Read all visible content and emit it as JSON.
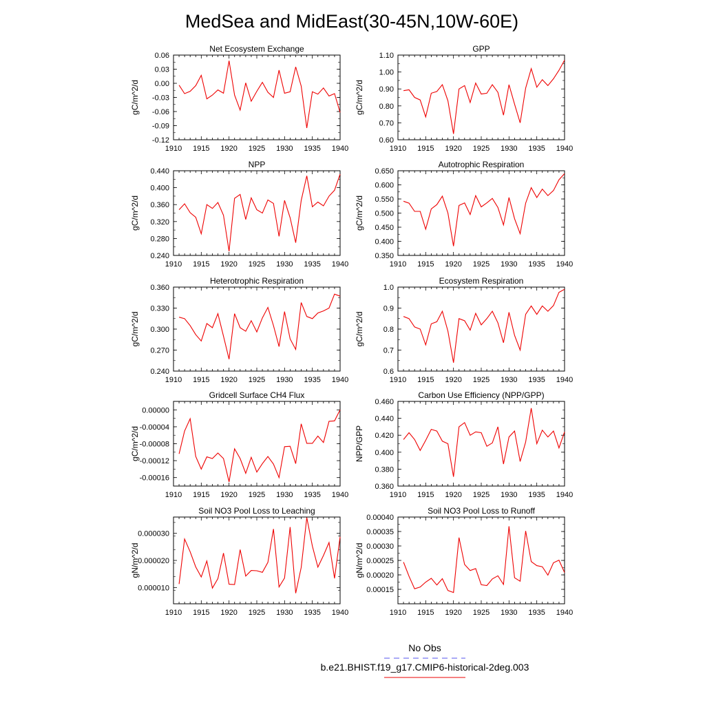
{
  "figure": {
    "title": "MedSea and MidEast(30-45N,10W-60E)",
    "legend": [
      {
        "label": "No Obs",
        "color": "#5555ee",
        "dash": true
      },
      {
        "label": "b.e21.BHIST.f19_g17.CMIP6-historical-2deg.003",
        "color": "#ee0000",
        "dash": false
      }
    ]
  },
  "chart_data": [
    {
      "type": "line",
      "title": "Net Ecosystem Exchange",
      "ylabel": "gC/m^2/d",
      "xlim": [
        1910,
        1940
      ],
      "ylim": [
        -0.12,
        0.06
      ],
      "xticks": [
        "1910",
        "1915",
        "1920",
        "1925",
        "1930",
        "1935",
        "1940"
      ],
      "yticks": [
        "-0.12",
        "-0.09",
        "-0.06",
        "-0.03",
        "0.00",
        "0.03",
        "0.06"
      ],
      "color": "#ee0000",
      "x": [
        1911,
        1912,
        1913,
        1914,
        1915,
        1916,
        1917,
        1918,
        1919,
        1920,
        1921,
        1922,
        1923,
        1924,
        1925,
        1926,
        1927,
        1928,
        1929,
        1930,
        1931,
        1932,
        1933,
        1934,
        1935,
        1936,
        1937,
        1938,
        1939,
        1940
      ],
      "values": [
        -0.004,
        -0.022,
        -0.017,
        -0.005,
        0.017,
        -0.033,
        -0.025,
        -0.014,
        -0.021,
        0.048,
        -0.025,
        -0.057,
        0.001,
        -0.038,
        -0.017,
        0.002,
        -0.019,
        -0.03,
        0.028,
        -0.021,
        -0.018,
        0.035,
        -0.006,
        -0.095,
        -0.018,
        -0.023,
        -0.01,
        -0.027,
        -0.022,
        -0.062
      ]
    },
    {
      "type": "line",
      "title": "GPP",
      "ylabel": "gC/m^2/d",
      "xlim": [
        1910,
        1940
      ],
      "ylim": [
        0.6,
        1.1
      ],
      "xticks": [
        "1910",
        "1915",
        "1920",
        "1925",
        "1930",
        "1935",
        "1940"
      ],
      "yticks": [
        "0.60",
        "0.70",
        "0.80",
        "0.90",
        "1.00",
        "1.10"
      ],
      "color": "#ee0000",
      "x": [
        1911,
        1912,
        1913,
        1914,
        1915,
        1916,
        1917,
        1918,
        1919,
        1920,
        1921,
        1922,
        1923,
        1924,
        1925,
        1926,
        1927,
        1928,
        1929,
        1930,
        1931,
        1932,
        1933,
        1934,
        1935,
        1936,
        1937,
        1938,
        1939,
        1940
      ],
      "values": [
        0.89,
        0.895,
        0.85,
        0.835,
        0.735,
        0.875,
        0.885,
        0.925,
        0.83,
        0.635,
        0.9,
        0.92,
        0.82,
        0.935,
        0.87,
        0.875,
        0.925,
        0.88,
        0.745,
        0.925,
        0.81,
        0.7,
        0.905,
        1.02,
        0.91,
        0.955,
        0.92,
        0.96,
        1.01,
        1.07
      ]
    },
    {
      "type": "line",
      "title": "NPP",
      "ylabel": "gC/m^2/d",
      "xlim": [
        1910,
        1940
      ],
      "ylim": [
        0.24,
        0.44
      ],
      "xticks": [
        "1910",
        "1915",
        "1920",
        "1925",
        "1930",
        "1935",
        "1940"
      ],
      "yticks": [
        "0.240",
        "0.280",
        "0.320",
        "0.360",
        "0.400",
        "0.440"
      ],
      "color": "#ee0000",
      "x": [
        1911,
        1912,
        1913,
        1914,
        1915,
        1916,
        1917,
        1918,
        1919,
        1920,
        1921,
        1922,
        1923,
        1924,
        1925,
        1926,
        1927,
        1928,
        1929,
        1930,
        1931,
        1932,
        1933,
        1934,
        1935,
        1936,
        1937,
        1938,
        1939,
        1940
      ],
      "values": [
        0.348,
        0.362,
        0.341,
        0.33,
        0.291,
        0.36,
        0.351,
        0.365,
        0.335,
        0.25,
        0.375,
        0.384,
        0.325,
        0.376,
        0.348,
        0.34,
        0.371,
        0.363,
        0.285,
        0.37,
        0.329,
        0.27,
        0.37,
        0.428,
        0.355,
        0.366,
        0.357,
        0.38,
        0.394,
        0.432
      ]
    },
    {
      "type": "line",
      "title": "Autotrophic Respiration",
      "ylabel": "gC/m^2/d",
      "xlim": [
        1910,
        1940
      ],
      "ylim": [
        0.35,
        0.65
      ],
      "xticks": [
        "1910",
        "1915",
        "1920",
        "1925",
        "1930",
        "1935",
        "1940"
      ],
      "yticks": [
        "0.350",
        "0.400",
        "0.450",
        "0.500",
        "0.550",
        "0.600",
        "0.650"
      ],
      "color": "#ee0000",
      "x": [
        1911,
        1912,
        1913,
        1914,
        1915,
        1916,
        1917,
        1918,
        1919,
        1920,
        1921,
        1922,
        1923,
        1924,
        1925,
        1926,
        1927,
        1928,
        1929,
        1930,
        1931,
        1932,
        1933,
        1934,
        1935,
        1936,
        1937,
        1938,
        1939,
        1940
      ],
      "values": [
        0.542,
        0.535,
        0.506,
        0.506,
        0.443,
        0.515,
        0.53,
        0.56,
        0.5,
        0.383,
        0.527,
        0.536,
        0.495,
        0.562,
        0.522,
        0.536,
        0.552,
        0.52,
        0.458,
        0.555,
        0.48,
        0.427,
        0.535,
        0.59,
        0.555,
        0.585,
        0.562,
        0.58,
        0.618,
        0.64
      ]
    },
    {
      "type": "line",
      "title": "Heterotrophic Respiration",
      "ylabel": "gC/m^2/d",
      "xlim": [
        1910,
        1940
      ],
      "ylim": [
        0.24,
        0.36
      ],
      "xticks": [
        "1910",
        "1915",
        "1920",
        "1925",
        "1930",
        "1935",
        "1940"
      ],
      "yticks": [
        "0.240",
        "0.270",
        "0.300",
        "0.330",
        "0.360"
      ],
      "color": "#ee0000",
      "x": [
        1911,
        1912,
        1913,
        1914,
        1915,
        1916,
        1917,
        1918,
        1919,
        1920,
        1921,
        1922,
        1923,
        1924,
        1925,
        1926,
        1927,
        1928,
        1929,
        1930,
        1931,
        1932,
        1933,
        1934,
        1935,
        1936,
        1937,
        1938,
        1939,
        1940
      ],
      "values": [
        0.317,
        0.315,
        0.305,
        0.292,
        0.283,
        0.308,
        0.302,
        0.322,
        0.29,
        0.257,
        0.322,
        0.302,
        0.297,
        0.312,
        0.296,
        0.316,
        0.331,
        0.305,
        0.275,
        0.325,
        0.286,
        0.271,
        0.338,
        0.318,
        0.315,
        0.323,
        0.326,
        0.33,
        0.35,
        0.347
      ]
    },
    {
      "type": "line",
      "title": "Ecosystem Respiration",
      "ylabel": "gC/m^2/d",
      "xlim": [
        1910,
        1940
      ],
      "ylim": [
        0.6,
        1.0
      ],
      "xticks": [
        "1910",
        "1915",
        "1920",
        "1925",
        "1930",
        "1935",
        "1940"
      ],
      "yticks": [
        "0.6",
        "0.7",
        "0.8",
        "0.9",
        "1.0"
      ],
      "color": "#ee0000",
      "x": [
        1911,
        1912,
        1913,
        1914,
        1915,
        1916,
        1917,
        1918,
        1919,
        1920,
        1921,
        1922,
        1923,
        1924,
        1925,
        1926,
        1927,
        1928,
        1929,
        1930,
        1931,
        1932,
        1933,
        1934,
        1935,
        1936,
        1937,
        1938,
        1939,
        1940
      ],
      "values": [
        0.86,
        0.85,
        0.81,
        0.8,
        0.725,
        0.825,
        0.835,
        0.885,
        0.79,
        0.64,
        0.85,
        0.84,
        0.795,
        0.875,
        0.82,
        0.85,
        0.885,
        0.83,
        0.735,
        0.88,
        0.77,
        0.7,
        0.87,
        0.91,
        0.87,
        0.91,
        0.885,
        0.912,
        0.975,
        0.99
      ]
    },
    {
      "type": "line",
      "title": "Gridcell Surface CH4 Flux",
      "ylabel": "gC/m^2/d",
      "xlim": [
        1910,
        1940
      ],
      "ylim": [
        -0.00018,
        2e-05
      ],
      "xticks": [
        "1910",
        "1915",
        "1920",
        "1925",
        "1930",
        "1935",
        "1940"
      ],
      "yticks": [
        "-0.00016",
        "-0.00012",
        "-0.00008",
        "-0.00004",
        "0.00000"
      ],
      "color": "#ee0000",
      "x": [
        1911,
        1912,
        1913,
        1914,
        1915,
        1916,
        1917,
        1918,
        1919,
        1920,
        1921,
        1922,
        1923,
        1924,
        1925,
        1926,
        1927,
        1928,
        1929,
        1930,
        1931,
        1932,
        1933,
        1934,
        1935,
        1936,
        1937,
        1938,
        1939,
        1940
      ],
      "values": [
        -0.000104,
        -5e-05,
        -2.1e-05,
        -0.00011,
        -0.00014,
        -0.000111,
        -0.000115,
        -0.000102,
        -0.000115,
        -0.00017,
        -9.2e-05,
        -0.000115,
        -0.00015,
        -0.000112,
        -0.000147,
        -0.000127,
        -0.00011,
        -0.000128,
        -0.00016,
        -8.7e-05,
        -8.6e-05,
        -0.000127,
        -3.3e-05,
        -7.9e-05,
        -7.9e-05,
        -6.2e-05,
        -7.7e-05,
        -2.7e-05,
        -2.6e-05,
        0.0
      ]
    },
    {
      "type": "line",
      "title": "Carbon Use Efficiency (NPP/GPP)",
      "ylabel": "NPP/GPP",
      "xlim": [
        1910,
        1940
      ],
      "ylim": [
        0.36,
        0.46
      ],
      "xticks": [
        "1910",
        "1915",
        "1920",
        "1925",
        "1930",
        "1935",
        "1940"
      ],
      "yticks": [
        "0.360",
        "0.380",
        "0.400",
        "0.420",
        "0.440",
        "0.460"
      ],
      "color": "#ee0000",
      "x": [
        1911,
        1912,
        1913,
        1914,
        1915,
        1916,
        1917,
        1918,
        1919,
        1920,
        1921,
        1922,
        1923,
        1924,
        1925,
        1926,
        1927,
        1928,
        1929,
        1930,
        1931,
        1932,
        1933,
        1934,
        1935,
        1936,
        1937,
        1938,
        1939,
        1940
      ],
      "values": [
        0.415,
        0.423,
        0.415,
        0.402,
        0.414,
        0.427,
        0.425,
        0.413,
        0.41,
        0.371,
        0.43,
        0.435,
        0.42,
        0.424,
        0.423,
        0.407,
        0.411,
        0.43,
        0.386,
        0.418,
        0.425,
        0.389,
        0.412,
        0.452,
        0.41,
        0.426,
        0.418,
        0.425,
        0.405,
        0.424
      ]
    },
    {
      "type": "line",
      "title": "Soil NO3 Pool Loss to Leaching",
      "ylabel": "gN/m^2/d",
      "xlim": [
        1910,
        1940
      ],
      "ylim": [
        4e-06,
        3.6e-05
      ],
      "xticks": [
        "1910",
        "1915",
        "1920",
        "1925",
        "1930",
        "1935",
        "1940"
      ],
      "yticks": [
        "0.000010",
        "0.000020",
        "0.000030"
      ],
      "color": "#ee0000",
      "x": [
        1911,
        1912,
        1913,
        1914,
        1915,
        1916,
        1917,
        1918,
        1919,
        1920,
        1921,
        1922,
        1923,
        1924,
        1925,
        1926,
        1927,
        1928,
        1929,
        1930,
        1931,
        1932,
        1933,
        1934,
        1935,
        1936,
        1937,
        1938,
        1939,
        1940
      ],
      "values": [
        1.13e-05,
        2.79e-05,
        2.32e-05,
        1.76e-05,
        1.39e-05,
        1.98e-05,
        9.8e-06,
        1.33e-05,
        2.27e-05,
        1.12e-05,
        1.11e-05,
        2.4e-05,
        1.42e-05,
        1.63e-05,
        1.62e-05,
        1.56e-05,
        1.93e-05,
        3.16e-05,
        1.02e-05,
        1.35e-05,
        3.23e-05,
        7.9e-06,
        1.74e-05,
        3.58e-05,
        2.53e-05,
        1.75e-05,
        2.18e-05,
        2.66e-05,
        1.34e-05,
        2.87e-05
      ]
    },
    {
      "type": "line",
      "title": "Soil NO3 Pool Loss to Runoff",
      "ylabel": "gN/m^2/d",
      "xlim": [
        1910,
        1940
      ],
      "ylim": [
        0.0001,
        0.0004
      ],
      "xticks": [
        "1910",
        "1915",
        "1920",
        "1925",
        "1930",
        "1935",
        "1940"
      ],
      "yticks": [
        "0.00015",
        "0.00020",
        "0.00025",
        "0.00030",
        "0.00035",
        "0.00040"
      ],
      "color": "#ee0000",
      "x": [
        1911,
        1912,
        1913,
        1914,
        1915,
        1916,
        1917,
        1918,
        1919,
        1920,
        1921,
        1922,
        1923,
        1924,
        1925,
        1926,
        1927,
        1928,
        1929,
        1930,
        1931,
        1932,
        1933,
        1934,
        1935,
        1936,
        1937,
        1938,
        1939,
        1940
      ],
      "values": [
        0.000244,
        0.000195,
        0.000152,
        0.000158,
        0.000175,
        0.000188,
        0.000165,
        0.000187,
        0.000146,
        0.000139,
        0.000329,
        0.000236,
        0.000215,
        0.000222,
        0.000166,
        0.000163,
        0.000186,
        0.000197,
        0.000167,
        0.000368,
        0.00019,
        0.000178,
        0.000352,
        0.000246,
        0.000232,
        0.000228,
        0.000199,
        0.000242,
        0.000251,
        0.000208
      ]
    }
  ]
}
